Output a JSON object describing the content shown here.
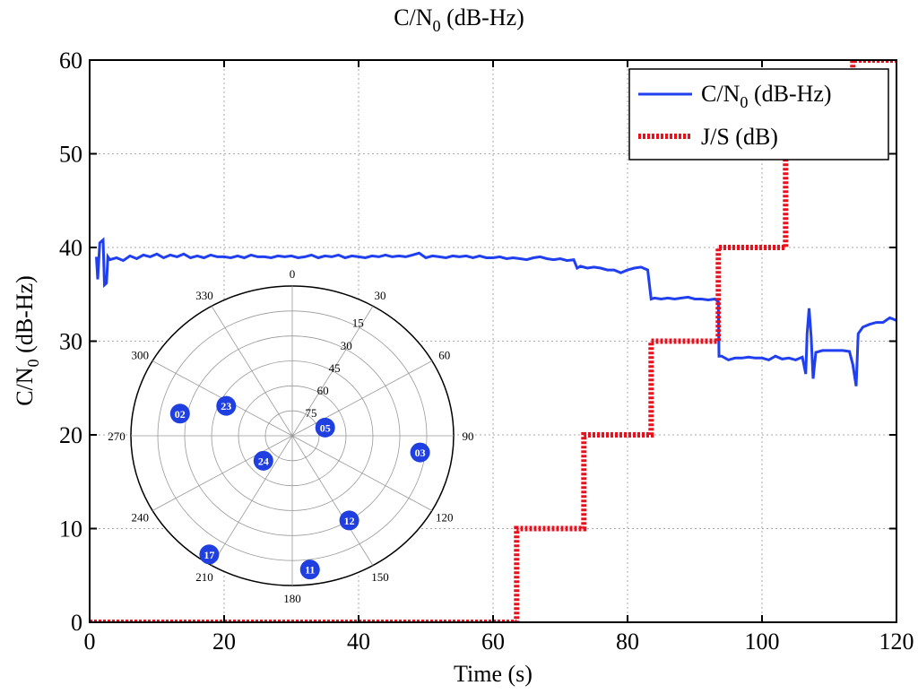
{
  "chart_data": [
    {
      "type": "line",
      "title": "C/N0 (dB-Hz)",
      "xlabel": "Time (s)",
      "ylabel": "C/N0 (dB-Hz)",
      "xlim": [
        0,
        120
      ],
      "ylim": [
        0,
        60
      ],
      "xticks": [
        0,
        20,
        40,
        60,
        80,
        100,
        120
      ],
      "yticks": [
        0,
        10,
        20,
        30,
        40,
        50,
        60
      ],
      "grid": true,
      "legend_position": "top-right",
      "series": [
        {
          "name": "C/N0 (dB-Hz)",
          "color": "#1f3ff0",
          "style": "solid",
          "points": [
            [
              1,
              39
            ],
            [
              1.2,
              36.6
            ],
            [
              1.5,
              40.5
            ],
            [
              2,
              40.8
            ],
            [
              2.2,
              36
            ],
            [
              2.5,
              36.2
            ],
            [
              2.7,
              39
            ],
            [
              3,
              38.7
            ],
            [
              4,
              38.9
            ],
            [
              5,
              38.6
            ],
            [
              6,
              39.1
            ],
            [
              7,
              38.8
            ],
            [
              8,
              39.2
            ],
            [
              9,
              39
            ],
            [
              10,
              39.3
            ],
            [
              11,
              38.9
            ],
            [
              12,
              39.2
            ],
            [
              13,
              39
            ],
            [
              14,
              39.3
            ],
            [
              15,
              38.9
            ],
            [
              16,
              39.1
            ],
            [
              17,
              38.9
            ],
            [
              18,
              39.2
            ],
            [
              19,
              39
            ],
            [
              20,
              39
            ],
            [
              21,
              38.9
            ],
            [
              22,
              39.1
            ],
            [
              23,
              38.9
            ],
            [
              24,
              39.2
            ],
            [
              25,
              39
            ],
            [
              26,
              39
            ],
            [
              27,
              38.9
            ],
            [
              28,
              39.1
            ],
            [
              29,
              39
            ],
            [
              30,
              39.1
            ],
            [
              31,
              38.9
            ],
            [
              32,
              39
            ],
            [
              33,
              39.2
            ],
            [
              34,
              38.9
            ],
            [
              35,
              39.1
            ],
            [
              36,
              39
            ],
            [
              37,
              39.2
            ],
            [
              38,
              38.9
            ],
            [
              39,
              39.1
            ],
            [
              40,
              39
            ],
            [
              41,
              38.9
            ],
            [
              42,
              39.1
            ],
            [
              43,
              39
            ],
            [
              44,
              39.2
            ],
            [
              45,
              39
            ],
            [
              46,
              39.1
            ],
            [
              47,
              39
            ],
            [
              48,
              39.2
            ],
            [
              49,
              39.4
            ],
            [
              50,
              38.9
            ],
            [
              51,
              39.1
            ],
            [
              52,
              39
            ],
            [
              53,
              38.9
            ],
            [
              54,
              39.1
            ],
            [
              55,
              39
            ],
            [
              56,
              39.1
            ],
            [
              57,
              38.9
            ],
            [
              58,
              39.1
            ],
            [
              59,
              38.9
            ],
            [
              60,
              38.9
            ],
            [
              61,
              39
            ],
            [
              62,
              38.8
            ],
            [
              63,
              38.9
            ],
            [
              64,
              38.8
            ],
            [
              65,
              38.7
            ],
            [
              66,
              38.9
            ],
            [
              67,
              39
            ],
            [
              68,
              38.8
            ],
            [
              69,
              38.7
            ],
            [
              70,
              38.8
            ],
            [
              71,
              38.6
            ],
            [
              72,
              38.7
            ],
            [
              72.5,
              37.8
            ],
            [
              73,
              38
            ],
            [
              74,
              37.8
            ],
            [
              75,
              37.9
            ],
            [
              76,
              37.8
            ],
            [
              77,
              37.6
            ],
            [
              78,
              37.6
            ],
            [
              79,
              37.3
            ],
            [
              80,
              37.6
            ],
            [
              81,
              37.8
            ],
            [
              82,
              37.9
            ],
            [
              83,
              37.6
            ],
            [
              83.5,
              34.5
            ],
            [
              84,
              34.6
            ],
            [
              85,
              34.5
            ],
            [
              86,
              34.6
            ],
            [
              87,
              34.5
            ],
            [
              88,
              34.6
            ],
            [
              89,
              34.7
            ],
            [
              90,
              34.5
            ],
            [
              91,
              34.5
            ],
            [
              92,
              34.4
            ],
            [
              93,
              34.5
            ],
            [
              93.5,
              34.2
            ],
            [
              93.6,
              28.4
            ],
            [
              94,
              28.4
            ],
            [
              95,
              28
            ],
            [
              96,
              28.2
            ],
            [
              97,
              28.2
            ],
            [
              98,
              28.3
            ],
            [
              99,
              28.2
            ],
            [
              100,
              28.2
            ],
            [
              101,
              28
            ],
            [
              102,
              28.4
            ],
            [
              103,
              28.1
            ],
            [
              104,
              28.2
            ],
            [
              105,
              28
            ],
            [
              106,
              28.3
            ],
            [
              106.5,
              26.5
            ],
            [
              106.7,
              30.8
            ],
            [
              107,
              33.5
            ],
            [
              107.3,
              30.5
            ],
            [
              107.6,
              26
            ],
            [
              108,
              28.8
            ],
            [
              109,
              29
            ],
            [
              110,
              29
            ],
            [
              111,
              29
            ],
            [
              112,
              29
            ],
            [
              113,
              28.9
            ],
            [
              113.5,
              27.5
            ],
            [
              114,
              25.2
            ],
            [
              114.3,
              30.8
            ],
            [
              115,
              31.5
            ],
            [
              116,
              31.8
            ],
            [
              117,
              32
            ],
            [
              118,
              32
            ],
            [
              119,
              32.5
            ],
            [
              119.7,
              32.3
            ],
            [
              120,
              32.2
            ]
          ]
        },
        {
          "name": "J/S (dB)",
          "color": "#e8101c",
          "style": "dotted-thick",
          "points": [
            [
              0,
              0
            ],
            [
              63.5,
              0
            ],
            [
              63.5,
              10
            ],
            [
              73.5,
              10
            ],
            [
              73.5,
              20
            ],
            [
              83.5,
              20
            ],
            [
              83.5,
              30
            ],
            [
              93.5,
              30
            ],
            [
              93.5,
              40
            ],
            [
              103.5,
              40
            ],
            [
              103.5,
              50
            ],
            [
              113.5,
              50
            ],
            [
              113.5,
              60
            ],
            [
              120,
              60
            ]
          ]
        }
      ]
    },
    {
      "type": "polar-skyplot",
      "azimuth_labels": [
        "0",
        "30",
        "60",
        "90",
        "120",
        "150",
        "180",
        "210",
        "240",
        "270",
        "300",
        "330"
      ],
      "elevation_labels": [
        "15",
        "30",
        "45",
        "60",
        "75"
      ],
      "marker_color": "#1f3fe0",
      "satellites": [
        {
          "prn": "02",
          "azimuth": 282,
          "elevation": 26
        },
        {
          "prn": "23",
          "azimuth": 296,
          "elevation": 49
        },
        {
          "prn": "05",
          "azimuth": 75,
          "elevation": 71
        },
        {
          "prn": "03",
          "azimuth": 98,
          "elevation": 18
        },
        {
          "prn": "24",
          "azimuth": 227,
          "elevation": 68
        },
        {
          "prn": "12",
          "azimuth": 148,
          "elevation": 30
        },
        {
          "prn": "11",
          "azimuth": 173,
          "elevation": 9
        },
        {
          "prn": "17",
          "azimuth": 213,
          "elevation": 5
        }
      ]
    }
  ]
}
